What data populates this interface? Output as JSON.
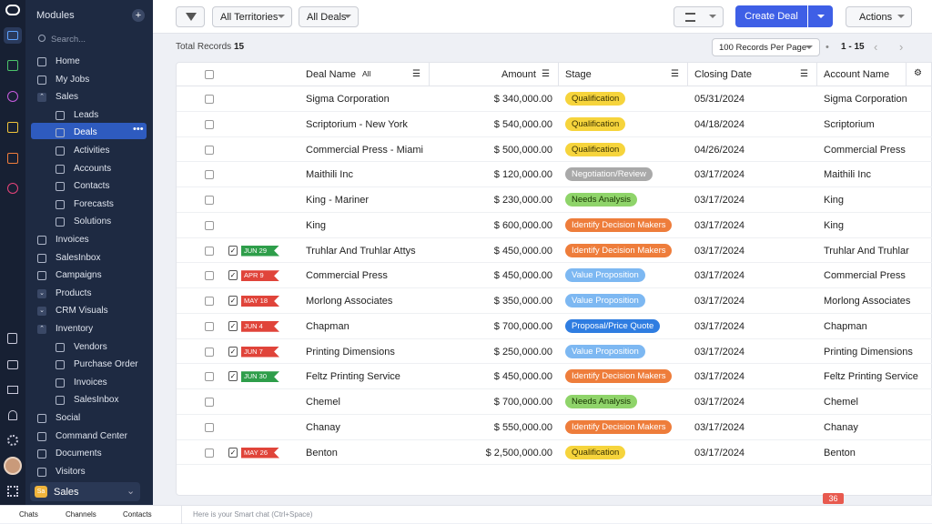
{
  "sidebar": {
    "header": "Modules",
    "search": "Search...",
    "items": [
      {
        "label": "Home",
        "level": 0
      },
      {
        "label": "My Jobs",
        "level": 0
      },
      {
        "label": "Sales",
        "level": 0,
        "expanded": true
      },
      {
        "label": "Leads",
        "level": 1
      },
      {
        "label": "Deals",
        "level": 1,
        "active": true
      },
      {
        "label": "Activities",
        "level": 1
      },
      {
        "label": "Accounts",
        "level": 1
      },
      {
        "label": "Contacts",
        "level": 1
      },
      {
        "label": "Forecasts",
        "level": 1
      },
      {
        "label": "Solutions",
        "level": 1
      },
      {
        "label": "Invoices",
        "level": 0
      },
      {
        "label": "SalesInbox",
        "level": 0
      },
      {
        "label": "Campaigns",
        "level": 0
      },
      {
        "label": "Products",
        "level": 0,
        "expanded": false
      },
      {
        "label": "CRM Visuals",
        "level": 0,
        "expanded": false
      },
      {
        "label": "Inventory",
        "level": 0,
        "expanded": true
      },
      {
        "label": "Vendors",
        "level": 1
      },
      {
        "label": "Purchase Order",
        "level": 1
      },
      {
        "label": "Invoices",
        "level": 1
      },
      {
        "label": "SalesInbox",
        "level": 1
      },
      {
        "label": "Social",
        "level": 0
      },
      {
        "label": "Command Center",
        "level": 0
      },
      {
        "label": "Documents",
        "level": 0
      },
      {
        "label": "Visitors",
        "level": 0
      }
    ],
    "workspace": {
      "badge": "Sa",
      "label": "Sales"
    }
  },
  "toolbar": {
    "territories": "All Territories",
    "deals": "All Deals",
    "create": "Create Deal",
    "actions": "Actions"
  },
  "records": {
    "label": "Total Records",
    "count": "15",
    "per_page": "100 Records Per Page",
    "range": "1 - 15"
  },
  "table": {
    "columns": {
      "deal": "Deal Name",
      "filter": "All",
      "amount": "Amount",
      "stage": "Stage",
      "date": "Closing Date",
      "account": "Account Name"
    },
    "stage_colors": {
      "Qualification": [
        "#f6d43c",
        "#3a3200"
      ],
      "Negotiation/Review": [
        "#a9a9a9",
        "#ffffff"
      ],
      "Needs Analysis": [
        "#8fd46a",
        "#173300"
      ],
      "Identify Decision Makers": [
        "#ee7d3b",
        "#ffffff"
      ],
      "Value Proposition": [
        "#7db8f2",
        "#ffffff"
      ],
      "Proposal/Price Quote": [
        "#2f7de1",
        "#ffffff"
      ]
    },
    "rows": [
      {
        "tag": null,
        "deal": "Sigma Corporation",
        "amount": "$ 340,000.00",
        "stage": "Qualification",
        "date": "05/31/2024",
        "account": "Sigma Corporation"
      },
      {
        "tag": null,
        "deal": "Scriptorium - New York",
        "amount": "$ 540,000.00",
        "stage": "Qualification",
        "date": "04/18/2024",
        "account": "Scriptorium"
      },
      {
        "tag": null,
        "deal": "Commercial Press - Miami",
        "amount": "$ 500,000.00",
        "stage": "Qualification",
        "date": "04/26/2024",
        "account": "Commercial Press"
      },
      {
        "tag": null,
        "deal": "Maithili Inc",
        "amount": "$ 120,000.00",
        "stage": "Negotiation/Review",
        "date": "03/17/2024",
        "account": "Maithili Inc"
      },
      {
        "tag": null,
        "deal": "King - Mariner",
        "amount": "$ 230,000.00",
        "stage": "Needs Analysis",
        "date": "03/17/2024",
        "account": "King"
      },
      {
        "tag": null,
        "deal": "King",
        "amount": "$ 600,000.00",
        "stage": "Identify Decision Makers",
        "date": "03/17/2024",
        "account": "King"
      },
      {
        "tag": {
          "label": "JUN 29",
          "color": "#2e9e4a"
        },
        "deal": "Truhlar And Truhlar Attys",
        "amount": "$ 450,000.00",
        "stage": "Identify Decision Makers",
        "date": "03/17/2024",
        "account": "Truhlar And Truhlar"
      },
      {
        "tag": {
          "label": "APR 9",
          "color": "#e0443a"
        },
        "deal": "Commercial Press",
        "amount": "$ 450,000.00",
        "stage": "Value Proposition",
        "date": "03/17/2024",
        "account": "Commercial Press"
      },
      {
        "tag": {
          "label": "MAY 18",
          "color": "#e0443a"
        },
        "deal": "Morlong Associates",
        "amount": "$ 350,000.00",
        "stage": "Value Proposition",
        "date": "03/17/2024",
        "account": "Morlong Associates"
      },
      {
        "tag": {
          "label": "JUN 4",
          "color": "#e0443a"
        },
        "deal": "Chapman",
        "amount": "$ 700,000.00",
        "stage": "Proposal/Price Quote",
        "date": "03/17/2024",
        "account": "Chapman"
      },
      {
        "tag": {
          "label": "JUN 7",
          "color": "#e0443a"
        },
        "deal": "Printing Dimensions",
        "amount": "$ 250,000.00",
        "stage": "Value Proposition",
        "date": "03/17/2024",
        "account": "Printing Dimensions"
      },
      {
        "tag": {
          "label": "JUN 30",
          "color": "#2e9e4a"
        },
        "deal": "Feltz Printing Service",
        "amount": "$ 450,000.00",
        "stage": "Identify Decision Makers",
        "date": "03/17/2024",
        "account": "Feltz Printing Service"
      },
      {
        "tag": null,
        "deal": "Chemel",
        "amount": "$ 700,000.00",
        "stage": "Needs Analysis",
        "date": "03/17/2024",
        "account": "Chemel"
      },
      {
        "tag": null,
        "deal": "Chanay",
        "amount": "$ 550,000.00",
        "stage": "Identify Decision Makers",
        "date": "03/17/2024",
        "account": "Chanay"
      },
      {
        "tag": {
          "label": "MAY 26",
          "color": "#e0443a"
        },
        "deal": "Benton",
        "amount": "$ 2,500,000.00",
        "stage": "Qualification",
        "date": "03/17/2024",
        "account": "Benton"
      }
    ]
  },
  "footer": {
    "chats": "Chats",
    "channels": "Channels",
    "contacts": "Contacts",
    "smart_chat": "Here is your Smart chat (Ctrl+Space)",
    "notifications": "36"
  }
}
